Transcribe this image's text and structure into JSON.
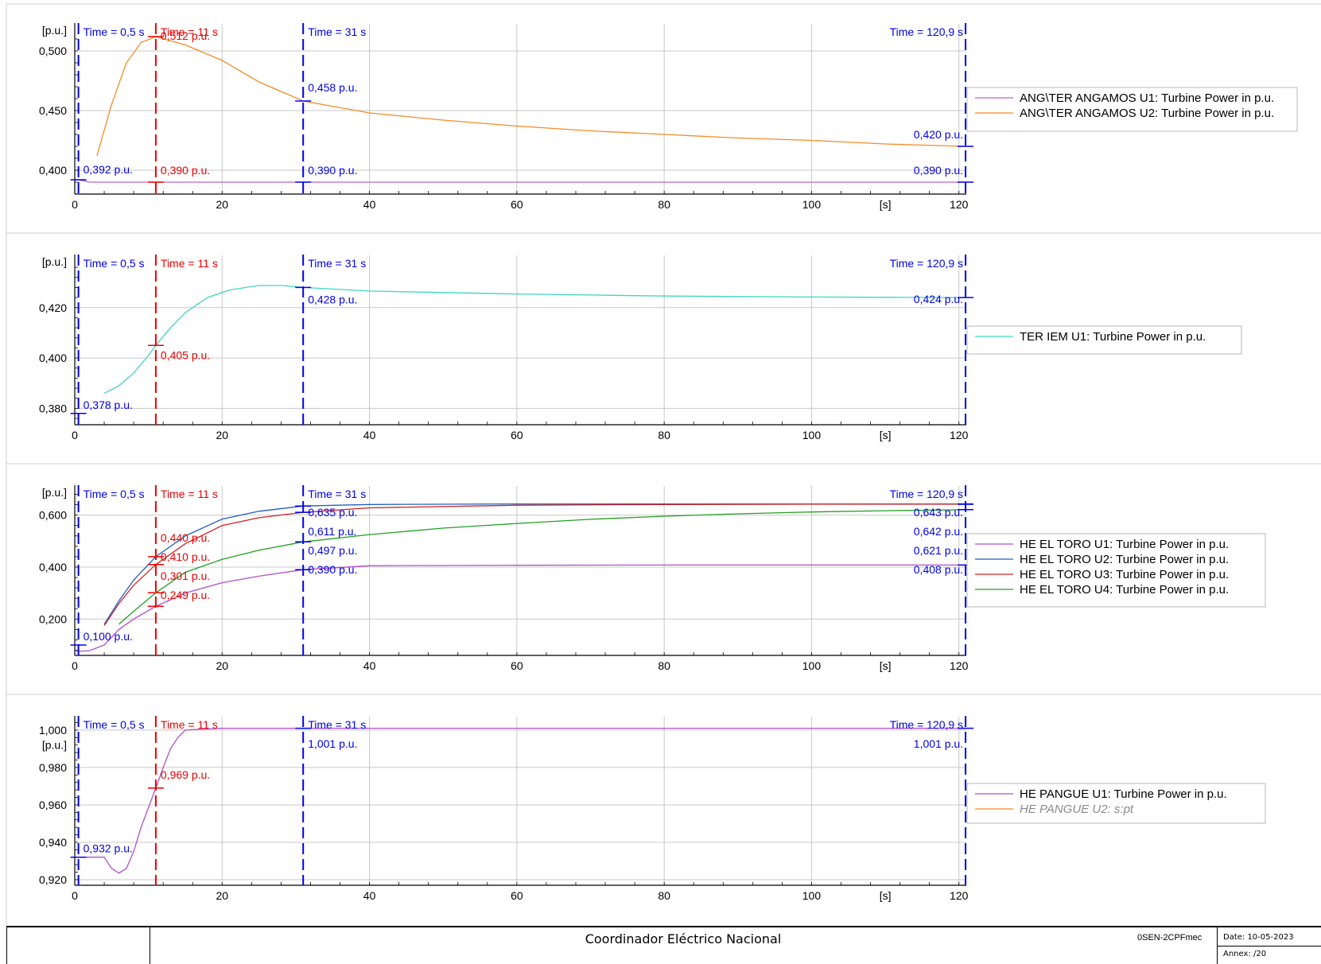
{
  "footer": {
    "organization": "Coordinador Eléctrico Nacional",
    "code": "0SEN-2CPFmec",
    "date": "Date: 10-05-2023",
    "annex": "Annex:  /20"
  },
  "colors": {
    "cursor_blue": "#0000ee",
    "cursor_red": "#ee0000",
    "grid": "#c8c8c8"
  },
  "chart_data": [
    {
      "type": "line",
      "ylabel": "[p.u.]",
      "xlabel": "[s]",
      "xlim": [
        0,
        121
      ],
      "ylim": [
        0.38,
        0.52
      ],
      "yticks": [
        0.4,
        0.45,
        0.5
      ],
      "ytick_labels": [
        "0,400",
        "0,450",
        "0,500"
      ],
      "xticks": [
        0,
        20,
        40,
        60,
        80,
        100,
        120
      ],
      "grid": true,
      "legend_position": "right",
      "cursors": [
        {
          "x": 0.5,
          "label": "Time = 0,5 s",
          "color": "blue",
          "values": [
            {
              "text": "0,392 p.u.",
              "y": 0.392
            }
          ]
        },
        {
          "x": 11,
          "label": "Time = 11 s",
          "color": "red",
          "values": [
            {
              "text": "0,512 p.u.",
              "y": 0.512
            },
            {
              "text": "0,390 p.u.",
              "y": 0.39
            }
          ]
        },
        {
          "x": 31,
          "label": "Time = 31 s",
          "color": "blue",
          "values": [
            {
              "text": "0,458 p.u.",
              "y": 0.458
            },
            {
              "text": "0,390 p.u.",
              "y": 0.39
            }
          ]
        },
        {
          "x": 120.9,
          "label": "Time = 120,9 s",
          "color": "blue",
          "values": [
            {
              "text": "0,420 p.u.",
              "y": 0.42
            },
            {
              "text": "0,390 p.u.",
              "y": 0.39
            }
          ]
        }
      ],
      "series": [
        {
          "name": "ANG\\TER ANGAMOS U1: Turbine Power in p.u.",
          "color": "#c060d0",
          "x": [
            0,
            0.5,
            2,
            5,
            11,
            20,
            31,
            60,
            120.9
          ],
          "y": [
            0.392,
            0.392,
            0.39,
            0.39,
            0.39,
            0.39,
            0.39,
            0.39,
            0.39
          ]
        },
        {
          "name": "ANG\\TER ANGAMOS U2: Turbine Power in p.u.",
          "color": "#f28c28",
          "x": [
            3,
            5,
            7,
            9,
            11,
            15,
            20,
            25,
            31,
            40,
            50,
            60,
            70,
            80,
            90,
            100,
            110,
            120.9
          ],
          "y": [
            0.412,
            0.455,
            0.49,
            0.507,
            0.512,
            0.505,
            0.492,
            0.474,
            0.458,
            0.448,
            0.442,
            0.437,
            0.433,
            0.43,
            0.427,
            0.425,
            0.422,
            0.42
          ]
        }
      ]
    },
    {
      "type": "line",
      "ylabel": "[p.u.]",
      "xlabel": "[s]",
      "xlim": [
        0,
        121
      ],
      "ylim": [
        0.3735,
        0.4395
      ],
      "yticks": [
        0.38,
        0.4,
        0.42
      ],
      "ytick_labels": [
        "0,380",
        "0,400",
        "0,420"
      ],
      "xticks": [
        0,
        20,
        40,
        60,
        80,
        100,
        120
      ],
      "grid": true,
      "legend_position": "right",
      "cursors": [
        {
          "x": 0.5,
          "label": "Time = 0,5 s",
          "color": "blue",
          "values": [
            {
              "text": "0,378 p.u.",
              "y": 0.378
            }
          ]
        },
        {
          "x": 11,
          "label": "Time = 11 s",
          "color": "red",
          "values": [
            {
              "text": "0,405 p.u.",
              "y": 0.405
            }
          ]
        },
        {
          "x": 31,
          "label": "Time = 31 s",
          "color": "blue",
          "values": [
            {
              "text": "0,428 p.u.",
              "y": 0.428
            }
          ]
        },
        {
          "x": 120.9,
          "label": "Time = 120,9 s",
          "color": "blue",
          "values": [
            {
              "text": "0,424 p.u.",
              "y": 0.424
            }
          ]
        }
      ],
      "series": [
        {
          "name": "TER IEM U1: Turbine Power in p.u.",
          "color": "#3fd6c0",
          "x": [
            4,
            6,
            8,
            10,
            11,
            13,
            15,
            18,
            21,
            25,
            28,
            31,
            40,
            50,
            60,
            70,
            80,
            90,
            100,
            110,
            120.9
          ],
          "y": [
            0.386,
            0.389,
            0.394,
            0.401,
            0.405,
            0.412,
            0.418,
            0.424,
            0.427,
            0.4288,
            0.4288,
            0.428,
            0.4266,
            0.426,
            0.4254,
            0.425,
            0.4246,
            0.4244,
            0.4242,
            0.4241,
            0.424
          ]
        }
      ]
    },
    {
      "type": "line",
      "ylabel": "[p.u.]",
      "xlabel": "[s]",
      "xlim": [
        0,
        121
      ],
      "ylim": [
        0.06,
        0.7
      ],
      "yticks": [
        0.2,
        0.4,
        0.6
      ],
      "ytick_labels": [
        "0,200",
        "0,400",
        "0,600"
      ],
      "xticks": [
        0,
        20,
        40,
        60,
        80,
        100,
        120
      ],
      "grid": true,
      "legend_position": "right",
      "cursors": [
        {
          "x": 0.5,
          "label": "Time = 0,5 s",
          "color": "blue",
          "values": [
            {
              "text": "0,100 p.u.",
              "y": 0.1
            }
          ]
        },
        {
          "x": 11,
          "label": "Time = 11 s",
          "color": "red",
          "values": [
            {
              "text": "0,440 p.u.",
              "y": 0.44
            },
            {
              "text": "0,410 p.u.",
              "y": 0.41
            },
            {
              "text": "0,301 p.u.",
              "y": 0.301
            },
            {
              "text": "0,249 p.u.",
              "y": 0.249
            }
          ]
        },
        {
          "x": 31,
          "label": "Time = 31 s",
          "color": "blue",
          "values": [
            {
              "text": "0,635 p.u.",
              "y": 0.635
            },
            {
              "text": "0,611 p.u.",
              "y": 0.611
            },
            {
              "text": "0,497 p.u.",
              "y": 0.497
            },
            {
              "text": "0,390 p.u.",
              "y": 0.39
            }
          ]
        },
        {
          "x": 120.9,
          "label": "Time = 120,9 s",
          "color": "blue",
          "values": [
            {
              "text": "0,643 p.u.",
              "y": 0.643
            },
            {
              "text": "0,642 p.u.",
              "y": 0.642
            },
            {
              "text": "0,621 p.u.",
              "y": 0.621
            },
            {
              "text": "0,408 p.u.",
              "y": 0.408
            }
          ]
        }
      ],
      "series": [
        {
          "name": "HE EL TORO U1: Turbine Power in p.u.",
          "color": "#b050c8",
          "x": [
            0,
            2,
            4,
            6,
            8,
            11,
            15,
            20,
            25,
            31,
            40,
            60,
            80,
            100,
            120.9
          ],
          "y": [
            0.075,
            0.078,
            0.1,
            0.16,
            0.2,
            0.249,
            0.3,
            0.34,
            0.365,
            0.39,
            0.405,
            0.407,
            0.408,
            0.408,
            0.408
          ]
        },
        {
          "name": "HE EL TORO U2: Turbine Power in p.u.",
          "color": "#1f5fbf",
          "x": [
            4,
            6,
            8,
            11,
            15,
            20,
            25,
            31,
            40,
            60,
            80,
            100,
            120.9
          ],
          "y": [
            0.18,
            0.27,
            0.35,
            0.44,
            0.52,
            0.585,
            0.615,
            0.635,
            0.641,
            0.643,
            0.643,
            0.643,
            0.643
          ]
        },
        {
          "name": "HE EL TORO U3: Turbine Power in p.u.",
          "color": "#d42020",
          "x": [
            4,
            6,
            8,
            11,
            15,
            20,
            25,
            31,
            40,
            60,
            80,
            100,
            120.9
          ],
          "y": [
            0.175,
            0.26,
            0.33,
            0.41,
            0.49,
            0.56,
            0.59,
            0.611,
            0.628,
            0.638,
            0.641,
            0.642,
            0.642
          ]
        },
        {
          "name": "HE EL TORO U4: Turbine Power in p.u.",
          "color": "#22a022",
          "x": [
            6,
            8,
            11,
            15,
            20,
            25,
            31,
            40,
            50,
            60,
            70,
            80,
            90,
            100,
            110,
            120.9
          ],
          "y": [
            0.18,
            0.23,
            0.301,
            0.38,
            0.43,
            0.465,
            0.497,
            0.525,
            0.55,
            0.568,
            0.584,
            0.596,
            0.605,
            0.612,
            0.617,
            0.621
          ]
        }
      ]
    },
    {
      "type": "line",
      "ylabel": "[p.u.]",
      "xlabel": "[s]",
      "xlim": [
        0,
        121
      ],
      "ylim": [
        0.917,
        1.0055
      ],
      "yticks": [
        0.92,
        0.94,
        0.96,
        0.98,
        1.0
      ],
      "ytick_labels": [
        "0,920",
        "0,940",
        "0,960",
        "0,980",
        "1,000"
      ],
      "xticks": [
        0,
        20,
        40,
        60,
        80,
        100,
        120
      ],
      "grid": true,
      "legend_position": "right",
      "cursors": [
        {
          "x": 0.5,
          "label": "Time = 0,5 s",
          "color": "blue",
          "values": [
            {
              "text": "0,932 p.u.",
              "y": 0.932
            }
          ]
        },
        {
          "x": 11,
          "label": "Time = 11 s",
          "color": "red",
          "values": [
            {
              "text": "0,969 p.u.",
              "y": 0.969
            }
          ]
        },
        {
          "x": 31,
          "label": "Time = 31 s",
          "color": "blue",
          "values": [
            {
              "text": "1,001 p.u.",
              "y": 1.001
            }
          ]
        },
        {
          "x": 120.9,
          "label": "Time = 120,9 s",
          "color": "blue",
          "values": [
            {
              "text": "1,001 p.u.",
              "y": 1.001
            }
          ]
        }
      ],
      "series": [
        {
          "name": "HE PANGUE U1: Turbine Power in p.u.",
          "color": "#b050c8",
          "x": [
            0,
            2,
            4,
            5,
            6,
            7,
            8,
            9,
            11,
            12,
            13,
            14,
            15,
            20,
            31,
            40,
            60,
            80,
            100,
            120.9
          ],
          "y": [
            0.932,
            0.932,
            0.932,
            0.926,
            0.9235,
            0.926,
            0.935,
            0.948,
            0.969,
            0.98,
            0.99,
            0.996,
            1.0,
            1.001,
            1.001,
            1.001,
            1.001,
            1.001,
            1.001,
            1.001
          ]
        },
        {
          "name": "HE PANGUE U2: s:pt",
          "color": "#f28c28",
          "disabled": true,
          "x": [],
          "y": []
        }
      ]
    }
  ]
}
